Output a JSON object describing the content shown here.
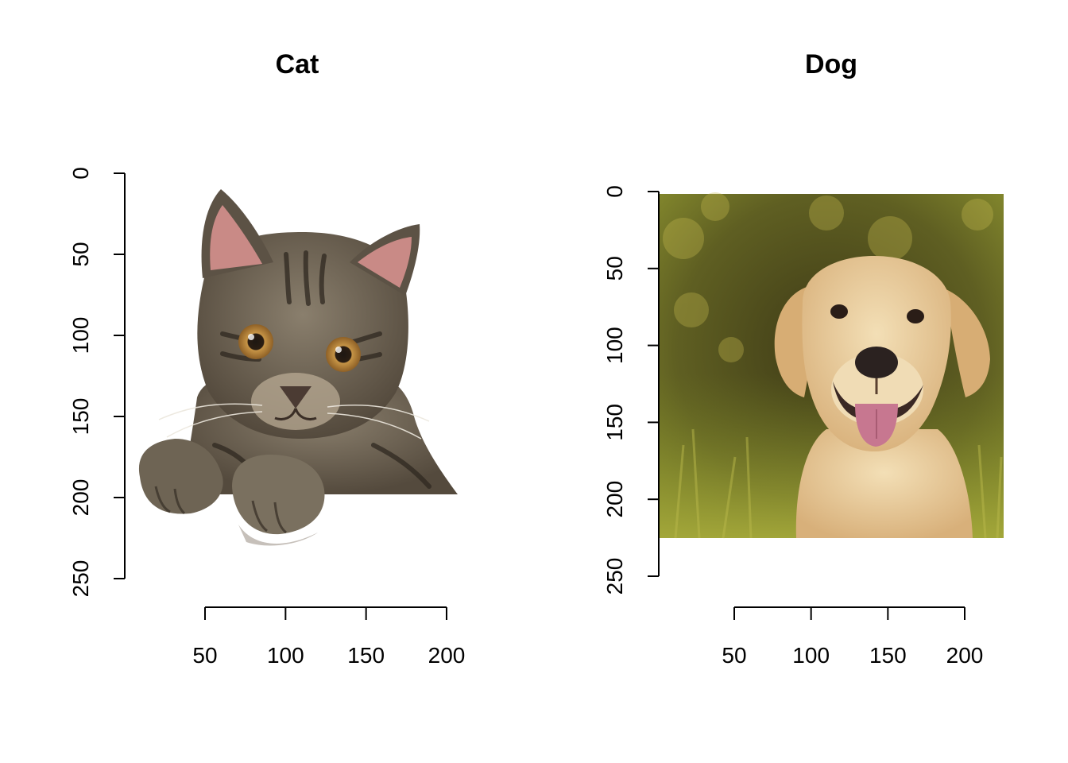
{
  "chart_data": [
    {
      "type": "image",
      "title": "Cat",
      "subject": "tabby kitten peeking over a ledge",
      "x_ticks": [
        50,
        100,
        150,
        200
      ],
      "y_ticks": [
        0,
        50,
        100,
        150,
        200,
        250
      ],
      "xlim": [
        0,
        200
      ],
      "ylim": [
        0,
        250
      ],
      "y_reversed": true,
      "grid": false,
      "background": "#ffffff",
      "colors": {
        "fur": "#6f6556",
        "fur_dark": "#3d352b",
        "ear_inner": "#c98a86",
        "eye": "#b8863d",
        "nose": "#4b3b33"
      }
    },
    {
      "type": "image",
      "title": "Dog",
      "subject": "yellow labrador retriever on a blurred green background",
      "x_ticks": [
        50,
        100,
        150,
        200
      ],
      "y_ticks": [
        0,
        50,
        100,
        150,
        200,
        250
      ],
      "xlim": [
        0,
        225
      ],
      "ylim": [
        0,
        250
      ],
      "y_reversed": true,
      "grid": false,
      "colors": {
        "background_top": "#6e6a2a",
        "background_bottom": "#8e9a33",
        "fur": "#e9cf9f",
        "fur_shade": "#cfa873",
        "tongue": "#c77790",
        "nose": "#2b2220"
      }
    }
  ]
}
